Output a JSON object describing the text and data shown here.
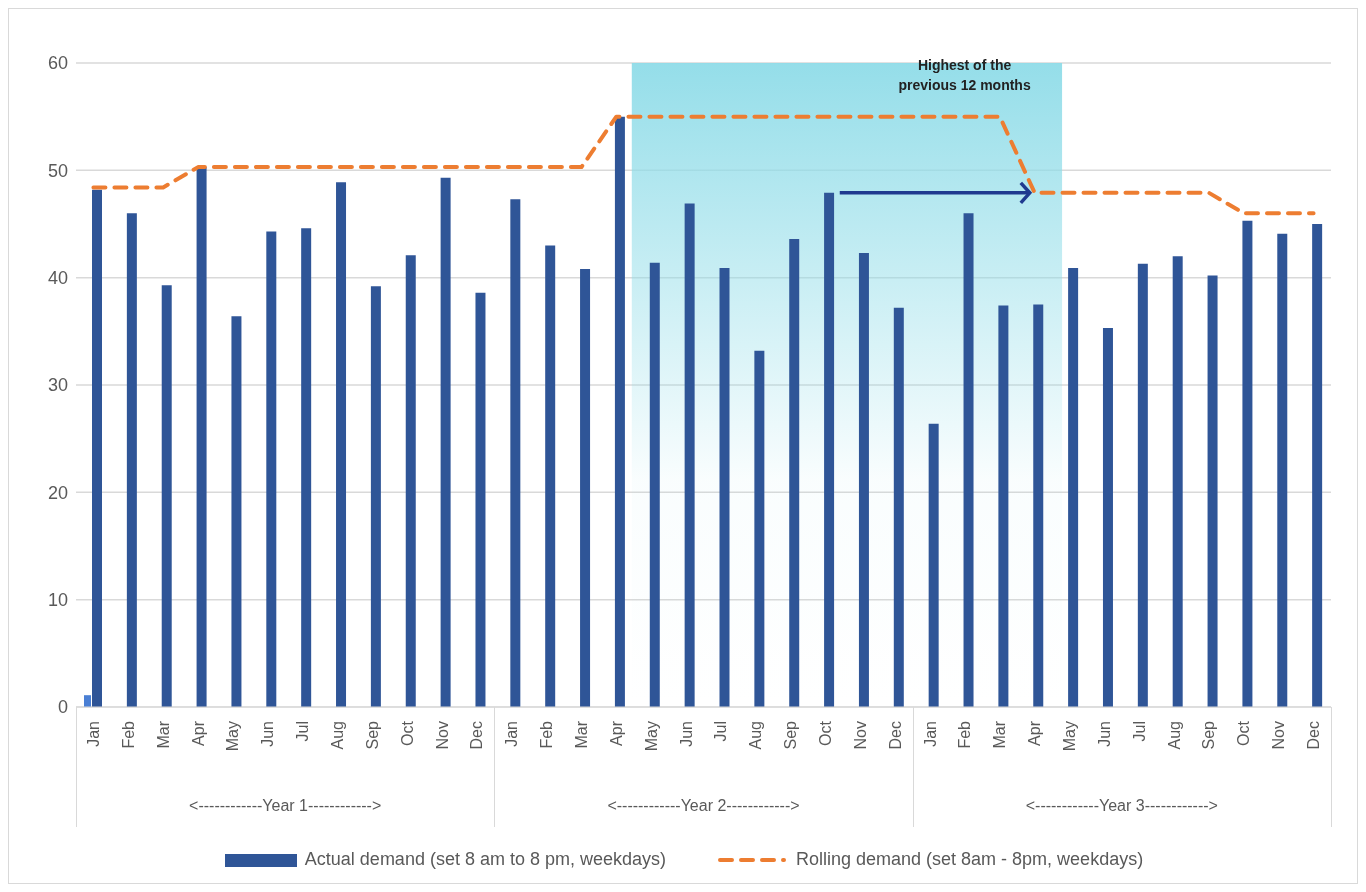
{
  "chart_data": {
    "type": "bar",
    "categories": [
      "Jan",
      "Feb",
      "Mar",
      "Apr",
      "May",
      "Jun",
      "Jul",
      "Aug",
      "Sep",
      "Oct",
      "Nov",
      "Dec",
      "Jan",
      "Feb",
      "Mar",
      "Apr",
      "May",
      "Jun",
      "Jul",
      "Aug",
      "Sep",
      "Oct",
      "Nov",
      "Dec",
      "Jan",
      "Feb",
      "Mar",
      "Apr",
      "May",
      "Jun",
      "Jul",
      "Aug",
      "Sep",
      "Oct",
      "Nov",
      "Dec"
    ],
    "series": [
      {
        "type": "bar",
        "color": "#4a7fd4",
        "values": [
          1.1,
          null,
          null,
          null,
          null,
          null,
          null,
          null,
          null,
          null,
          null,
          null,
          null,
          null,
          null,
          null,
          null,
          null,
          null,
          null,
          null,
          null,
          null,
          null,
          null,
          null,
          null,
          null,
          null,
          null,
          null,
          null,
          null,
          null,
          null,
          null
        ]
      },
      {
        "name": "Actual demand (set 8 am to 8 pm, weekdays)",
        "color": "#2f5597",
        "values": [
          48.2,
          46.0,
          39.3,
          50.3,
          36.4,
          44.3,
          44.6,
          48.9,
          39.2,
          42.1,
          49.3,
          38.6,
          47.3,
          43.0,
          40.8,
          55.0,
          41.4,
          46.9,
          40.9,
          33.2,
          43.6,
          47.9,
          42.3,
          37.2,
          26.4,
          46.0,
          37.4,
          37.5,
          40.9,
          35.3,
          41.3,
          42.0,
          40.2,
          45.3,
          44.1,
          45.0
        ]
      },
      {
        "type": "line",
        "name": "Rolling demand (set 8am - 8pm, weekdays)",
        "color": "#ed7d31",
        "line_style": "dashed",
        "values": [
          48.4,
          48.4,
          48.4,
          50.3,
          50.3,
          50.3,
          50.3,
          50.3,
          50.3,
          50.3,
          50.3,
          50.3,
          50.3,
          50.3,
          50.3,
          55.0,
          55.0,
          55.0,
          55.0,
          55.0,
          55.0,
          55.0,
          55.0,
          55.0,
          55.0,
          55.0,
          55.0,
          47.9,
          47.9,
          47.9,
          47.9,
          47.9,
          47.9,
          46.0,
          46.0,
          46.0
        ]
      }
    ],
    "ylim": [
      0,
      60
    ],
    "yticks": [
      0,
      10,
      20,
      30,
      40,
      50,
      60
    ],
    "grid": "y",
    "legend": "bottom",
    "marker": "none",
    "annotations": [
      "Highest of the previous 12 months",
      "<------------Year 1------------>",
      "<------------Year 2------------>",
      "<------------Year 3------------>"
    ]
  }
}
